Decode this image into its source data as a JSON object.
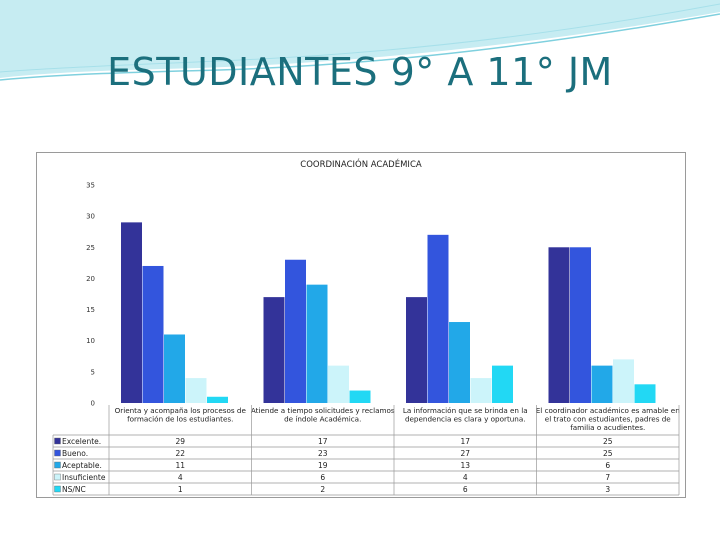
{
  "slide": {
    "title": "ESTUDIANTES 9° A 11° JM",
    "colors": {
      "title": "#1b6f7d",
      "accent_top": "#b9e6ee"
    }
  },
  "chart_data": {
    "type": "bar",
    "title": "COORDINACIÓN ACADÉMICA",
    "xlabel": "",
    "ylabel": "",
    "ylim": [
      0,
      35
    ],
    "yticks": [
      0,
      5,
      10,
      15,
      20,
      25,
      30,
      35
    ],
    "grid": false,
    "legend": "data-table-left",
    "categories": [
      [
        "Orienta y acompaña los procesos de",
        "formación de los  estudiantes."
      ],
      [
        "Atiende a tiempo solicitudes y reclamos",
        "de índole Académica."
      ],
      [
        "La información que se brinda en la",
        "dependencia es clara y oportuna."
      ],
      [
        "El coordinador académico es amable en",
        "el trato con estudiantes, padres de",
        "familia o acudientes."
      ]
    ],
    "series": [
      {
        "name": "Excelente.",
        "color": "#333399",
        "values": [
          29,
          17,
          17,
          25
        ]
      },
      {
        "name": "Bueno.",
        "color": "#3355dd",
        "values": [
          22,
          23,
          27,
          25
        ]
      },
      {
        "name": "Aceptable.",
        "color": "#22a8e8",
        "values": [
          11,
          19,
          13,
          6
        ]
      },
      {
        "name": "Insuficiente",
        "color": "#ccf4fa",
        "values": [
          4,
          6,
          4,
          7
        ]
      },
      {
        "name": "NS/NC",
        "color": "#22d8f4",
        "values": [
          1,
          2,
          6,
          3
        ]
      }
    ]
  }
}
